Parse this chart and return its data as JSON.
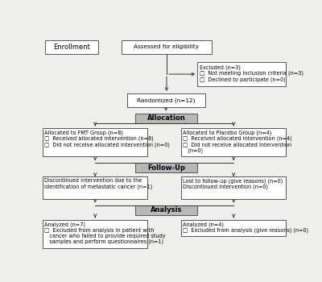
{
  "bg_color": "#f0f0eb",
  "box_color": "#ffffff",
  "box_edge_color": "#555555",
  "header_bg": "#b8b8b8",
  "arrow_color": "#333333",
  "font_size": 5.2,
  "header_font_size": 6.0,
  "enrollment_label": "Enrollment",
  "eligibility_text": "Assessed for eligibility",
  "excluded_text": "Excluded (n=3)\n□  Not meeting inclusion criteria (n=3)\n□  Declined to participate (n=0)",
  "randomized_text": "Randomized (n=12)",
  "allocation_label": "Allocation",
  "fmt_text": "Allocated to FMT Group (n=8)\n□  Received allocated intervention (n=8)\n□  Did not receive allocated intervention (n=0)",
  "placebo_text": "Allocated to Placebo Group (n=4)\n□  Received allocated intervention (n=4)\n□  Did not receive allocated intervention\n   (n=0)",
  "followup_label": "Follow-Up",
  "discontinued_text": "Discontinued intervention due to the\nidentification of metastatic cancer (n=1)",
  "lost_text": "Lost to follow-up (give reasons) (n=0)\nDiscontinued intervention (n=0)",
  "analysis_label": "Analysis",
  "analyzed_fmt_text": "Analyzed (n=7)\n□  Excluded from analysis in patient with\n   cancer who failed to provide required study\n   samples and perform questionnaires (n=1)",
  "analyzed_placebo_text": "Analyzed (n=4)\n□  Excluded from analysis (give reasons) (n=0)"
}
